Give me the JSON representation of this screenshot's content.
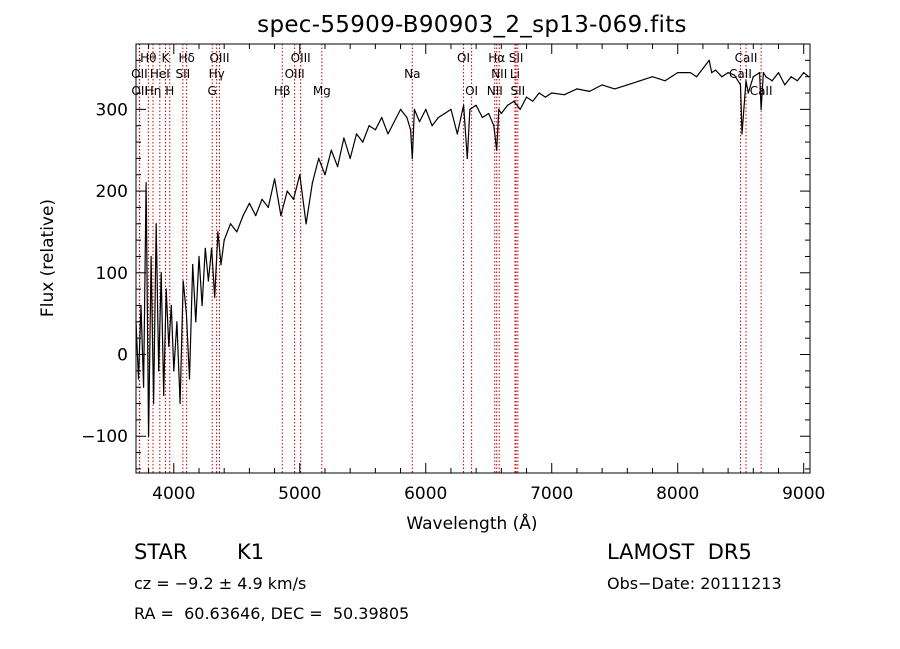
{
  "chart_data": {
    "type": "line",
    "title": "spec-55909-B90903_2_sp13-069.fits",
    "xlabel": "Wavelength (Å)",
    "ylabel": "Flux (relative)",
    "xlim": [
      3700,
      9050
    ],
    "ylim": [
      -145,
      380
    ],
    "xticks": [
      4000,
      5000,
      6000,
      7000,
      8000,
      9000
    ],
    "yticks": [
      -100,
      0,
      100,
      200,
      300
    ],
    "grid": false,
    "line_color": "#000000",
    "marker_color": "#cc0000",
    "series": [
      {
        "x": [
          3700,
          3720,
          3740,
          3760,
          3780,
          3800,
          3820,
          3840,
          3860,
          3880,
          3900,
          3920,
          3940,
          3960,
          3980,
          4000,
          4025,
          4050,
          4075,
          4100,
          4125,
          4150,
          4175,
          4200,
          4225,
          4250,
          4275,
          4300,
          4325,
          4350,
          4375,
          4400,
          4450,
          4500,
          4550,
          4600,
          4650,
          4700,
          4750,
          4800,
          4850,
          4900,
          4950,
          5000,
          5050,
          5100,
          5150,
          5200,
          5250,
          5300,
          5350,
          5400,
          5450,
          5500,
          5550,
          5600,
          5650,
          5700,
          5750,
          5800,
          5850,
          5880,
          5893,
          5910,
          5950,
          6000,
          6050,
          6100,
          6150,
          6200,
          6250,
          6300,
          6330,
          6350,
          6400,
          6450,
          6500,
          6540,
          6563,
          6580,
          6600,
          6650,
          6700,
          6750,
          6800,
          6850,
          6900,
          6950,
          7000,
          7100,
          7200,
          7300,
          7400,
          7500,
          7600,
          7700,
          7800,
          7900,
          8000,
          8100,
          8150,
          8200,
          8250,
          8270,
          8300,
          8350,
          8400,
          8450,
          8498,
          8510,
          8542,
          8560,
          8600,
          8650,
          8662,
          8680,
          8700,
          8750,
          8800,
          8850,
          8900,
          8950,
          9000,
          9040
        ],
        "y": [
          40,
          -30,
          60,
          -40,
          210,
          -100,
          120,
          -60,
          160,
          -20,
          100,
          -50,
          80,
          10,
          60,
          -20,
          40,
          -60,
          90,
          50,
          -30,
          110,
          40,
          120,
          60,
          130,
          90,
          130,
          70,
          150,
          110,
          140,
          160,
          150,
          170,
          185,
          170,
          190,
          180,
          215,
          170,
          200,
          190,
          220,
          160,
          210,
          240,
          220,
          250,
          230,
          265,
          240,
          270,
          260,
          280,
          275,
          290,
          270,
          285,
          300,
          290,
          275,
          240,
          300,
          285,
          300,
          280,
          290,
          295,
          300,
          270,
          305,
          240,
          300,
          305,
          290,
          295,
          280,
          250,
          300,
          295,
          305,
          310,
          300,
          315,
          310,
          320,
          315,
          320,
          318,
          325,
          322,
          330,
          325,
          330,
          335,
          340,
          335,
          345,
          345,
          340,
          350,
          360,
          345,
          348,
          340,
          345,
          342,
          330,
          270,
          335,
          320,
          340,
          345,
          300,
          345,
          340,
          335,
          345,
          330,
          340,
          335,
          345,
          340
        ]
      }
    ],
    "spectral_lines": [
      {
        "label": "Hθ",
        "x": 3798,
        "row": 1
      },
      {
        "label": "K",
        "x": 3934,
        "row": 1
      },
      {
        "label": "Hδ",
        "x": 4102,
        "row": 1
      },
      {
        "label": "OIII",
        "x": 4363,
        "row": 1
      },
      {
        "label": "OIII",
        "x": 5007,
        "row": 1
      },
      {
        "label": "OI",
        "x": 6300,
        "row": 1
      },
      {
        "label": "Hα",
        "x": 6563,
        "row": 1
      },
      {
        "label": "SII",
        "x": 6717,
        "row": 1
      },
      {
        "label": "CaII",
        "x": 8542,
        "row": 1
      },
      {
        "label": "OII",
        "x": 3727,
        "row": 2
      },
      {
        "label": "HeI",
        "x": 3889,
        "row": 2
      },
      {
        "label": "SII",
        "x": 4072,
        "row": 2
      },
      {
        "label": "Hγ",
        "x": 4340,
        "row": 2
      },
      {
        "label": "OIII",
        "x": 4959,
        "row": 2
      },
      {
        "label": "Na",
        "x": 5893,
        "row": 2
      },
      {
        "label": "NII",
        "x": 6583,
        "row": 2
      },
      {
        "label": "Li",
        "x": 6708,
        "row": 2
      },
      {
        "label": "CaII",
        "x": 8498,
        "row": 2
      },
      {
        "label": "OII",
        "x": 3729,
        "row": 3
      },
      {
        "label": "Hη",
        "x": 3835,
        "row": 3
      },
      {
        "label": "H",
        "x": 3968,
        "row": 3
      },
      {
        "label": "G",
        "x": 4305,
        "row": 3
      },
      {
        "label": "Hβ",
        "x": 4861,
        "row": 3
      },
      {
        "label": "Mg",
        "x": 5175,
        "row": 3
      },
      {
        "label": "OI",
        "x": 6364,
        "row": 3
      },
      {
        "label": "NII",
        "x": 6548,
        "row": 3
      },
      {
        "label": "SII",
        "x": 6731,
        "row": 3
      },
      {
        "label": "CaII",
        "x": 8662,
        "row": 3
      }
    ]
  },
  "info": {
    "class_label": "STAR",
    "subclass": "K1",
    "survey": "LAMOST  DR5",
    "cz": "cz = −9.2 ± 4.9 km/s",
    "obs_date": "Obs−Date: 20111213",
    "coords": "RA =  60.63646, DEC =  50.39805"
  }
}
